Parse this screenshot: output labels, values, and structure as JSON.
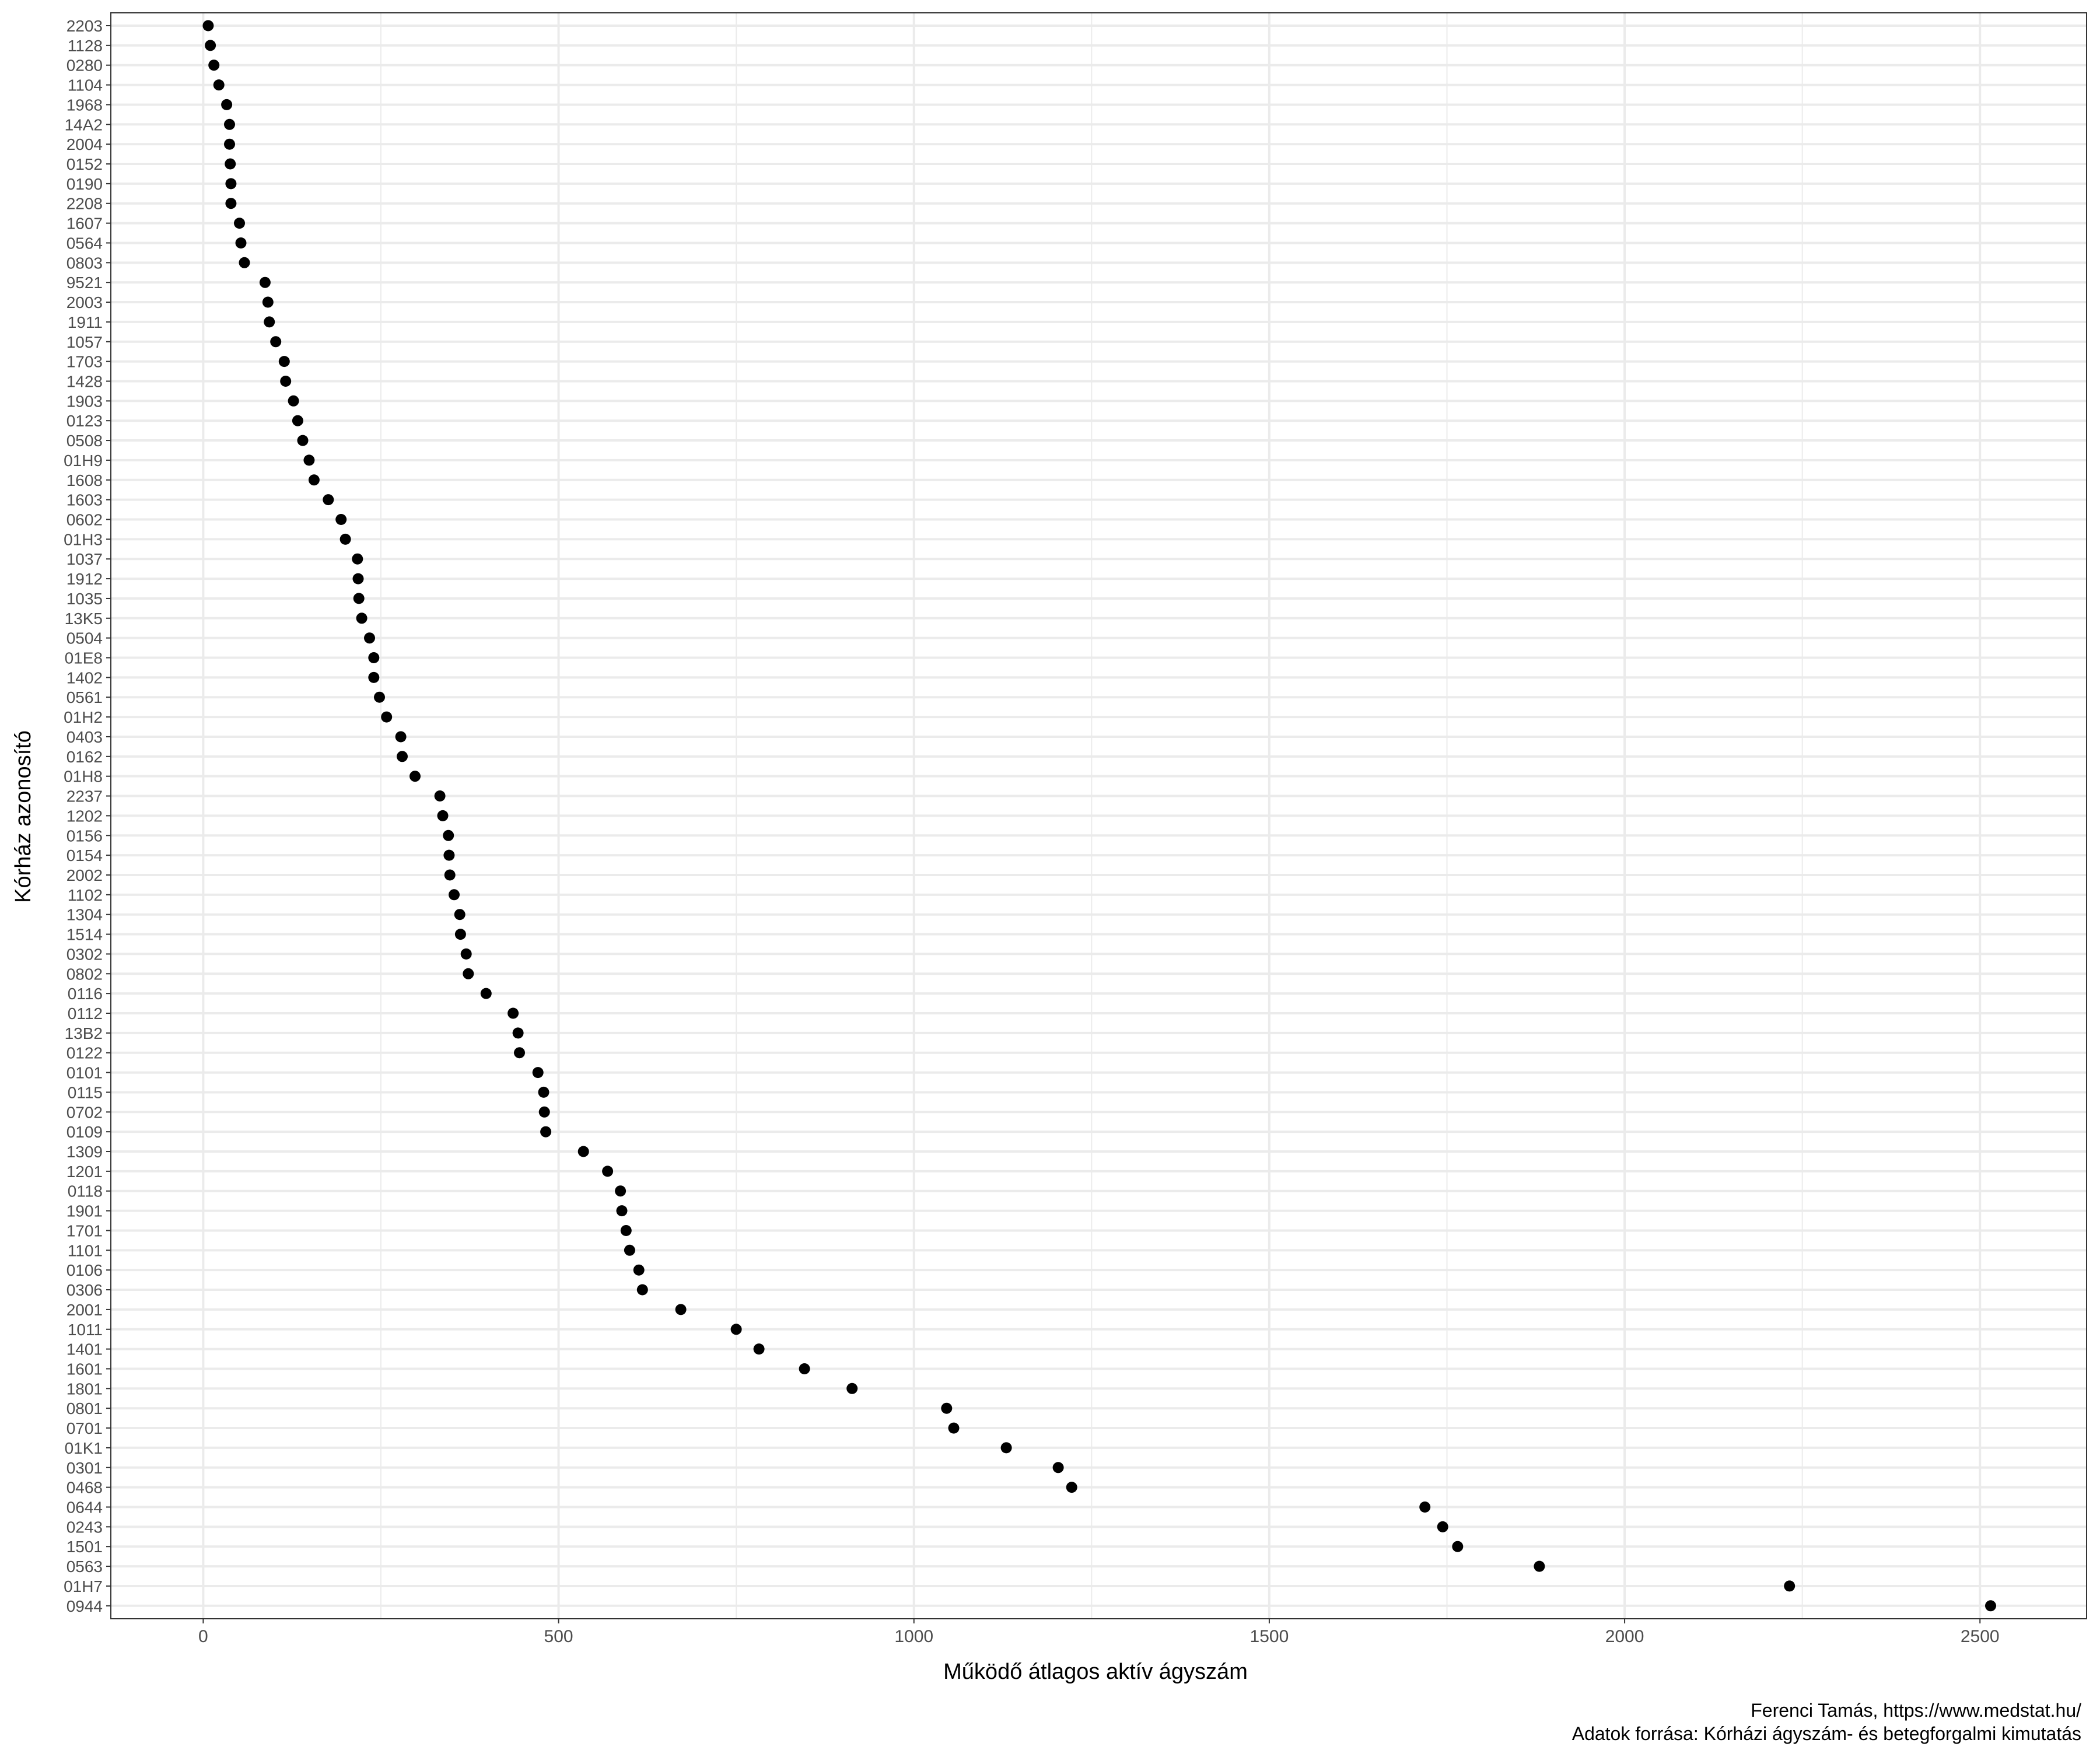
{
  "chart_data": {
    "type": "scatter",
    "xlabel": "Működő átlagos aktív ágyszám",
    "ylabel": "Kórház azonosító",
    "xlim": [
      -130,
      2650
    ],
    "x_ticks": [
      0,
      500,
      1000,
      1500,
      2000,
      2500
    ],
    "grid": true,
    "categories": [
      "2203",
      "1128",
      "0280",
      "1104",
      "1968",
      "14A2",
      "2004",
      "0152",
      "0190",
      "2208",
      "1607",
      "0564",
      "0803",
      "9521",
      "2003",
      "1911",
      "1057",
      "1703",
      "1428",
      "1903",
      "0123",
      "0508",
      "01H9",
      "1608",
      "1603",
      "0602",
      "01H3",
      "1037",
      "1912",
      "1035",
      "13K5",
      "0504",
      "01E8",
      "1402",
      "0561",
      "01H2",
      "0403",
      "0162",
      "01H8",
      "2237",
      "1202",
      "0156",
      "0154",
      "2002",
      "1102",
      "1304",
      "1514",
      "0302",
      "0802",
      "0116",
      "0112",
      "13B2",
      "0122",
      "0101",
      "0115",
      "0702",
      "0109",
      "1309",
      "1201",
      "0118",
      "1901",
      "1701",
      "1101",
      "0106",
      "0306",
      "2001",
      "1011",
      "1401",
      "1601",
      "1801",
      "0801",
      "0701",
      "01K1",
      "0301",
      "0468",
      "0644",
      "0243",
      "1501",
      "0563",
      "01H7",
      "0944"
    ],
    "values": [
      7,
      10,
      15,
      22,
      33,
      37,
      37,
      38,
      39,
      39,
      51,
      53,
      58,
      87,
      91,
      93,
      102,
      114,
      116,
      127,
      133,
      140,
      149,
      156,
      176,
      194,
      200,
      217,
      218,
      219,
      223,
      234,
      240,
      240,
      248,
      258,
      278,
      280,
      298,
      333,
      337,
      345,
      346,
      347,
      353,
      361,
      362,
      370,
      373,
      398,
      436,
      443,
      445,
      471,
      479,
      480,
      482,
      535,
      569,
      587,
      589,
      595,
      600,
      613,
      618,
      672,
      750,
      782,
      846,
      913,
      1046,
      1056,
      1130,
      1203,
      1222,
      1719,
      1744,
      1765,
      1880,
      2232,
      2515
    ],
    "credit": "Ferenci Tamás, https://www.medstat.hu/",
    "source": "Adatok forrása: Kórházi ágyszám- és betegforgalmi kimutatás"
  },
  "colors": {
    "panel_border": "#333333",
    "grid": "#ebebeb",
    "point": "#000000",
    "tick_text": "#4d4d4d",
    "title_text": "#000000"
  }
}
